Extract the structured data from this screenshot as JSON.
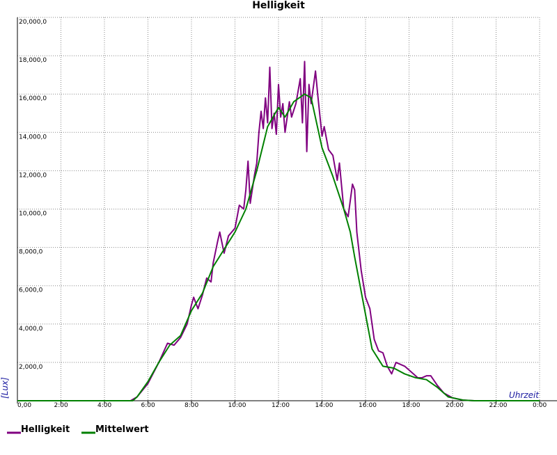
{
  "chart_data": {
    "type": "line",
    "title": "Helligkeit",
    "x_label": "Uhrzeit",
    "y_label": "[Lux]",
    "xlim": [
      0,
      24
    ],
    "ylim": [
      0,
      20000
    ],
    "xticks": [
      {
        "value": 0,
        "label": "0,00"
      },
      {
        "value": 2,
        "label": "2:00"
      },
      {
        "value": 4,
        "label": "4:00"
      },
      {
        "value": 6,
        "label": "6:00"
      },
      {
        "value": 8,
        "label": "8:00"
      },
      {
        "value": 10,
        "label": "10:00"
      },
      {
        "value": 12,
        "label": "12:00"
      },
      {
        "value": 14,
        "label": "14:00"
      },
      {
        "value": 16,
        "label": "16:00"
      },
      {
        "value": 18,
        "label": "18:00"
      },
      {
        "value": 20,
        "label": "20:00"
      },
      {
        "value": 22,
        "label": "22:00"
      },
      {
        "value": 24,
        "label": "0:00"
      }
    ],
    "yticks": [
      {
        "value": 2000,
        "label": "2,000,0"
      },
      {
        "value": 4000,
        "label": "4,000,0"
      },
      {
        "value": 6000,
        "label": "6,000,0"
      },
      {
        "value": 8000,
        "label": "8,000,0"
      },
      {
        "value": 10000,
        "label": "10,000,0"
      },
      {
        "value": 12000,
        "label": "12,000,0"
      },
      {
        "value": 14000,
        "label": "14,000,0"
      },
      {
        "value": 16000,
        "label": "16,000,0"
      },
      {
        "value": 18000,
        "label": "18,000,0"
      },
      {
        "value": 20000,
        "label": "20,000,0"
      }
    ],
    "grid": true,
    "series": [
      {
        "name": "Helligkeit",
        "color": "#800080",
        "x": [
          0,
          5.2,
          5.5,
          6.0,
          6.5,
          6.9,
          7.2,
          7.5,
          7.8,
          8.0,
          8.1,
          8.3,
          8.5,
          8.7,
          8.9,
          9.0,
          9.2,
          9.3,
          9.5,
          9.7,
          10.0,
          10.2,
          10.4,
          10.5,
          10.6,
          10.7,
          10.9,
          11.0,
          11.1,
          11.2,
          11.3,
          11.4,
          11.5,
          11.6,
          11.7,
          11.8,
          11.9,
          12.0,
          12.1,
          12.2,
          12.3,
          12.5,
          12.6,
          12.8,
          13.0,
          13.1,
          13.2,
          13.3,
          13.4,
          13.5,
          13.7,
          13.8,
          14.0,
          14.1,
          14.3,
          14.5,
          14.7,
          14.8,
          15.0,
          15.2,
          15.4,
          15.5,
          15.6,
          15.8,
          16.0,
          16.2,
          16.4,
          16.6,
          16.8,
          17.0,
          17.2,
          17.4,
          17.6,
          17.8,
          18.0,
          18.2,
          18.4,
          18.6,
          18.8,
          19.0,
          19.3,
          19.6,
          20.0,
          20.5,
          21,
          24
        ],
        "values": [
          0,
          0,
          200,
          900,
          2000,
          3000,
          2900,
          3300,
          4000,
          5000,
          5400,
          4800,
          5500,
          6400,
          6200,
          7200,
          8300,
          8800,
          7700,
          8600,
          9000,
          10200,
          10000,
          11000,
          12500,
          10300,
          11800,
          12400,
          14000,
          15100,
          14200,
          15800,
          14500,
          17400,
          14200,
          15000,
          13900,
          16500,
          14800,
          15500,
          14000,
          15600,
          14800,
          15500,
          16800,
          14500,
          17700,
          13000,
          16500,
          15500,
          17200,
          16000,
          13800,
          14300,
          13100,
          12800,
          11500,
          12400,
          10000,
          9600,
          11300,
          11000,
          8800,
          6800,
          5400,
          4800,
          3200,
          2600,
          2500,
          1800,
          1400,
          2000,
          1900,
          1800,
          1600,
          1400,
          1200,
          1200,
          1300,
          1300,
          800,
          400,
          150,
          30,
          0,
          0
        ]
      },
      {
        "name": "Mittelwert",
        "color": "#008000",
        "x": [
          0,
          5.3,
          5.5,
          6.0,
          6.5,
          7.0,
          7.5,
          8.0,
          8.5,
          9.0,
          9.5,
          10.0,
          10.5,
          11.0,
          11.5,
          12.0,
          12.3,
          12.7,
          13.2,
          13.5,
          14.0,
          14.5,
          15.0,
          15.3,
          15.5,
          16.0,
          16.3,
          16.8,
          17.3,
          17.8,
          18.3,
          18.8,
          19.3,
          19.8,
          20.5,
          21,
          24
        ],
        "values": [
          0,
          0,
          200,
          1000,
          2000,
          2900,
          3400,
          4700,
          5600,
          7000,
          7900,
          8800,
          10000,
          12000,
          14300,
          15300,
          14800,
          15600,
          16000,
          15800,
          13200,
          11700,
          10000,
          8800,
          7500,
          4500,
          2700,
          1800,
          1700,
          1400,
          1200,
          1100,
          700,
          200,
          30,
          0,
          0
        ]
      }
    ]
  }
}
